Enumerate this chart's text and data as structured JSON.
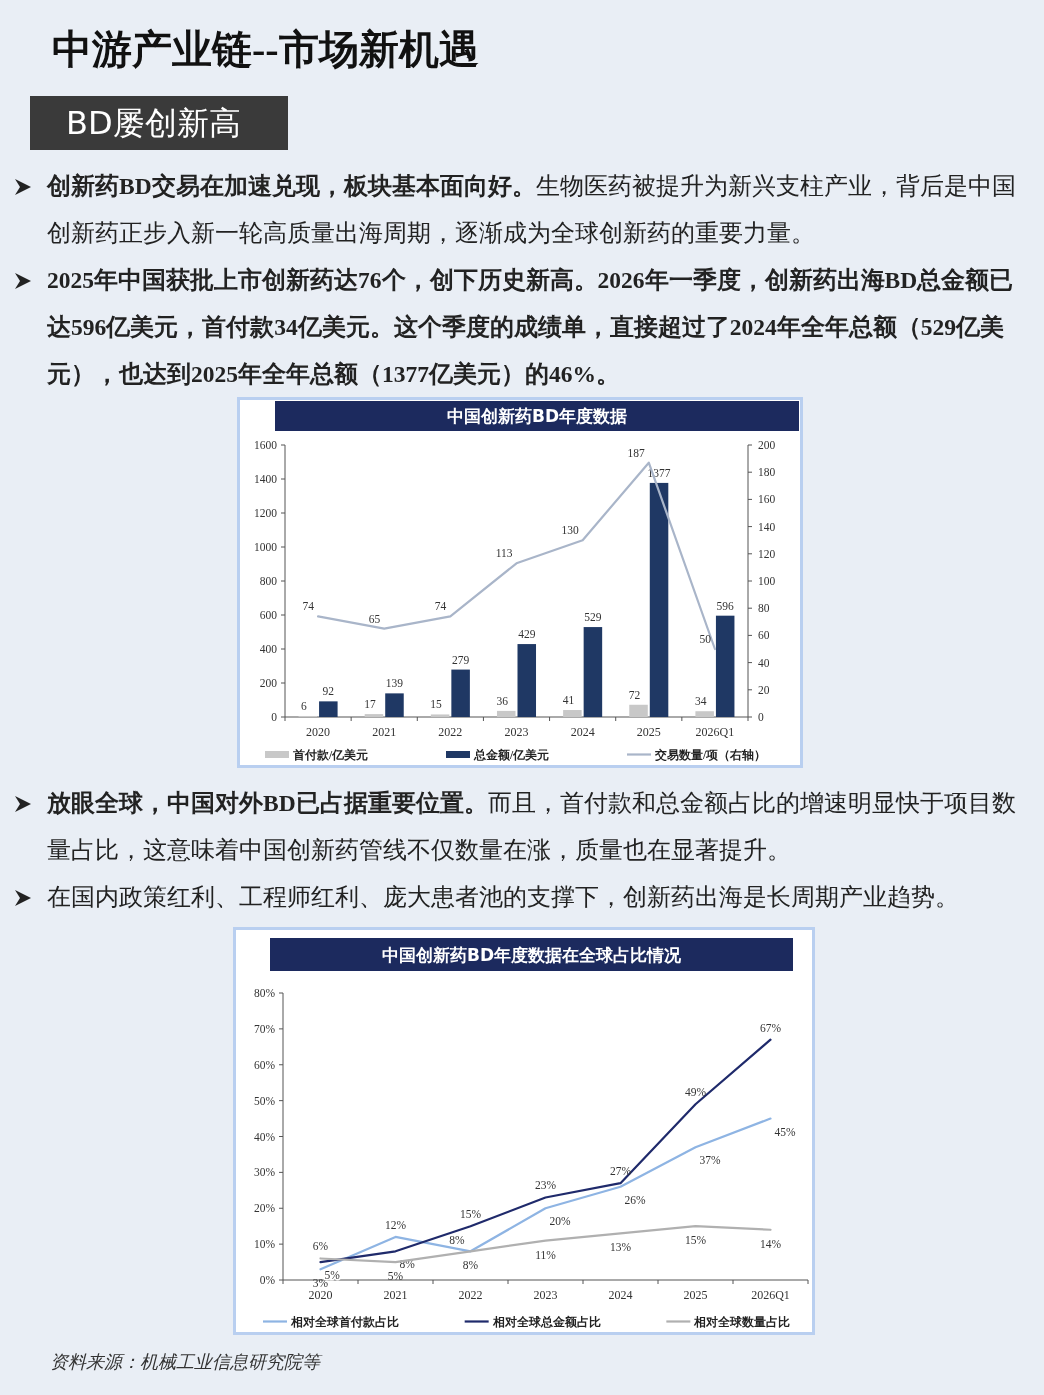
{
  "chart_data": [
    {
      "type": "other",
      "title": "中游产业链--市场新机遇",
      "subtitle": "BD屡创新高",
      "annotations": [
        "**创新药BD交易在加速兑现，板块基本面向好。**生物医药被提升为新兴支柱产业，背后是中国创新药正步入新一轮高质量出海周期，逐渐成为全球创新药的重要力量。",
        "**2025年中国获批上市创新药达76个，创下历史新高。2026年一季度，创新药出海BD总金额已达596亿美元，首付款34亿美元。这个季度的成绩单，直接超过了2024年全年总额（529亿美元），也达到2025年全年总额（1377亿美元）的46%。**"
      ]
    },
    {
      "type": "bar",
      "title": "中国创新药BD年度数据",
      "categories": [
        "2020",
        "2021",
        "2022",
        "2023",
        "2024",
        "2025",
        "2026Q1"
      ],
      "series": [
        {
          "name": "首付款/亿美元",
          "color": "#c8c8c8",
          "values": [
            6,
            17,
            15,
            36,
            41,
            72,
            34
          ]
        },
        {
          "name": "总金额/亿美元",
          "color": "#1f3864",
          "values": [
            92,
            139,
            279,
            429,
            529,
            1377,
            596
          ]
        },
        {
          "name": "交易数量/项（右轴）",
          "type": "line",
          "axis": "y2",
          "color": "#a9b5c9",
          "values": [
            74,
            65,
            74,
            113,
            130,
            187,
            50
          ]
        }
      ],
      "ylim": [
        0,
        1600
      ],
      "yticks": [
        0,
        200,
        400,
        600,
        800,
        1000,
        1200,
        1400,
        1600
      ],
      "y2lim": [
        0,
        200
      ],
      "y2ticks": [
        0,
        20,
        40,
        60,
        80,
        100,
        120,
        140,
        160,
        180,
        200
      ],
      "data_labels": true,
      "legend": "bottom"
    },
    {
      "type": "other",
      "annotations": [
        "**放眼全球，中国对外BD已占据重要位置。**而且，首付款和总金额占比的增速明显快于项目数量占比，这意味着中国创新药管线不仅数量在涨，质量也在显著提升。",
        "在国内政策红利、工程师红利、庞大患者池的支撑下，创新药出海是长周期产业趋势。"
      ]
    },
    {
      "type": "line",
      "title": "中国创新药BD年度数据在全球占比情况",
      "categories": [
        "2020",
        "2021",
        "2022",
        "2023",
        "2024",
        "2025",
        "2026Q1"
      ],
      "series": [
        {
          "name": "相对全球首付款占比",
          "color": "#8eb4e3",
          "values": [
            3,
            12,
            8,
            20,
            26,
            37,
            45
          ],
          "value_labels": [
            "3%",
            "12%",
            "8%",
            "20%",
            "26%",
            "37%",
            "45%"
          ]
        },
        {
          "name": "相对全球总金额占比",
          "color": "#1f2a6b",
          "values": [
            5,
            8,
            15,
            23,
            27,
            49,
            67
          ],
          "value_labels": [
            "5%",
            "8%",
            "15%",
            "23%",
            "27%",
            "49%",
            "67%"
          ]
        },
        {
          "name": "相对全球数量占比",
          "color": "#b0b0b0",
          "values": [
            6,
            5,
            8,
            11,
            13,
            15,
            14
          ],
          "value_labels": [
            "6%",
            "5%",
            "8%",
            "11%",
            "13%",
            "15%",
            "14%"
          ]
        }
      ],
      "ylim": [
        0,
        80
      ],
      "yticks": [
        {
          "value": 0,
          "label": "0%"
        },
        {
          "value": 10,
          "label": "10%"
        },
        {
          "value": 20,
          "label": "20%"
        },
        {
          "value": 30,
          "label": "30%"
        },
        {
          "value": 40,
          "label": "40%"
        },
        {
          "value": 50,
          "label": "50%"
        },
        {
          "value": 60,
          "label": "60%"
        },
        {
          "value": 70,
          "label": "70%"
        },
        {
          "value": 80,
          "label": "80%"
        }
      ],
      "legend": "bottom",
      "annotations": [
        "资料来源：机械工业信息研究院等"
      ]
    }
  ]
}
